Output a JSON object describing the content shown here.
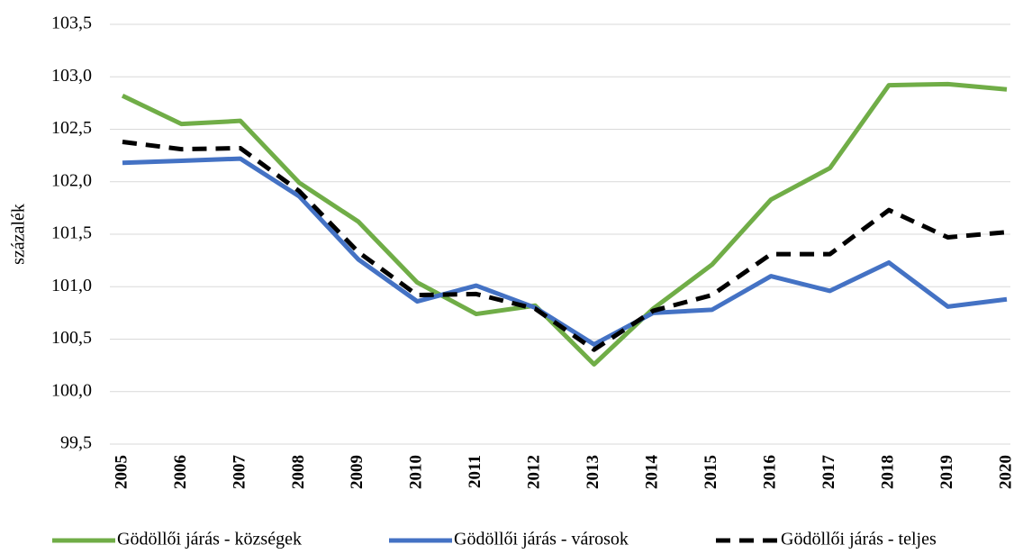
{
  "chart_data": {
    "type": "line",
    "y_label": "százalék",
    "categories": [
      "2005",
      "2006",
      "2007",
      "2008",
      "2009",
      "2010",
      "2011",
      "2012",
      "2013",
      "2014",
      "2015",
      "2016",
      "2017",
      "2018",
      "2019",
      "2020"
    ],
    "series": [
      {
        "name": "Gödöllői járás - községek",
        "color": "#70ad47",
        "dashed": false,
        "values": [
          102.82,
          102.55,
          102.58,
          101.99,
          101.62,
          101.04,
          100.74,
          100.82,
          100.26,
          100.79,
          101.21,
          101.83,
          102.13,
          102.92,
          102.93,
          102.88
        ]
      },
      {
        "name": "Gödöllői járás - városok",
        "color": "#4472c4",
        "dashed": false,
        "values": [
          102.18,
          102.2,
          102.22,
          101.86,
          101.26,
          100.86,
          101.01,
          100.8,
          100.45,
          100.75,
          100.78,
          101.1,
          100.96,
          101.23,
          100.81,
          100.88
        ]
      },
      {
        "name": "Gödöllői járás - teljes",
        "color": "#000000",
        "dashed": true,
        "values": [
          102.38,
          102.31,
          102.32,
          101.91,
          101.33,
          100.92,
          100.93,
          100.79,
          100.4,
          100.77,
          100.92,
          101.31,
          101.31,
          101.73,
          101.47,
          101.52
        ]
      }
    ],
    "ylim": [
      99.5,
      103.5
    ],
    "yticks": [
      {
        "value": 99.5,
        "label": "99,5"
      },
      {
        "value": 100,
        "label": "100,0"
      },
      {
        "value": 100.5,
        "label": "100,5"
      },
      {
        "value": 101,
        "label": "101,0"
      },
      {
        "value": 101.5,
        "label": "101,5"
      },
      {
        "value": 102,
        "label": "102,0"
      },
      {
        "value": 102.5,
        "label": "102,5"
      },
      {
        "value": 103,
        "label": "103,0"
      },
      {
        "value": 103.5,
        "label": "103,5"
      }
    ],
    "grid": true
  }
}
